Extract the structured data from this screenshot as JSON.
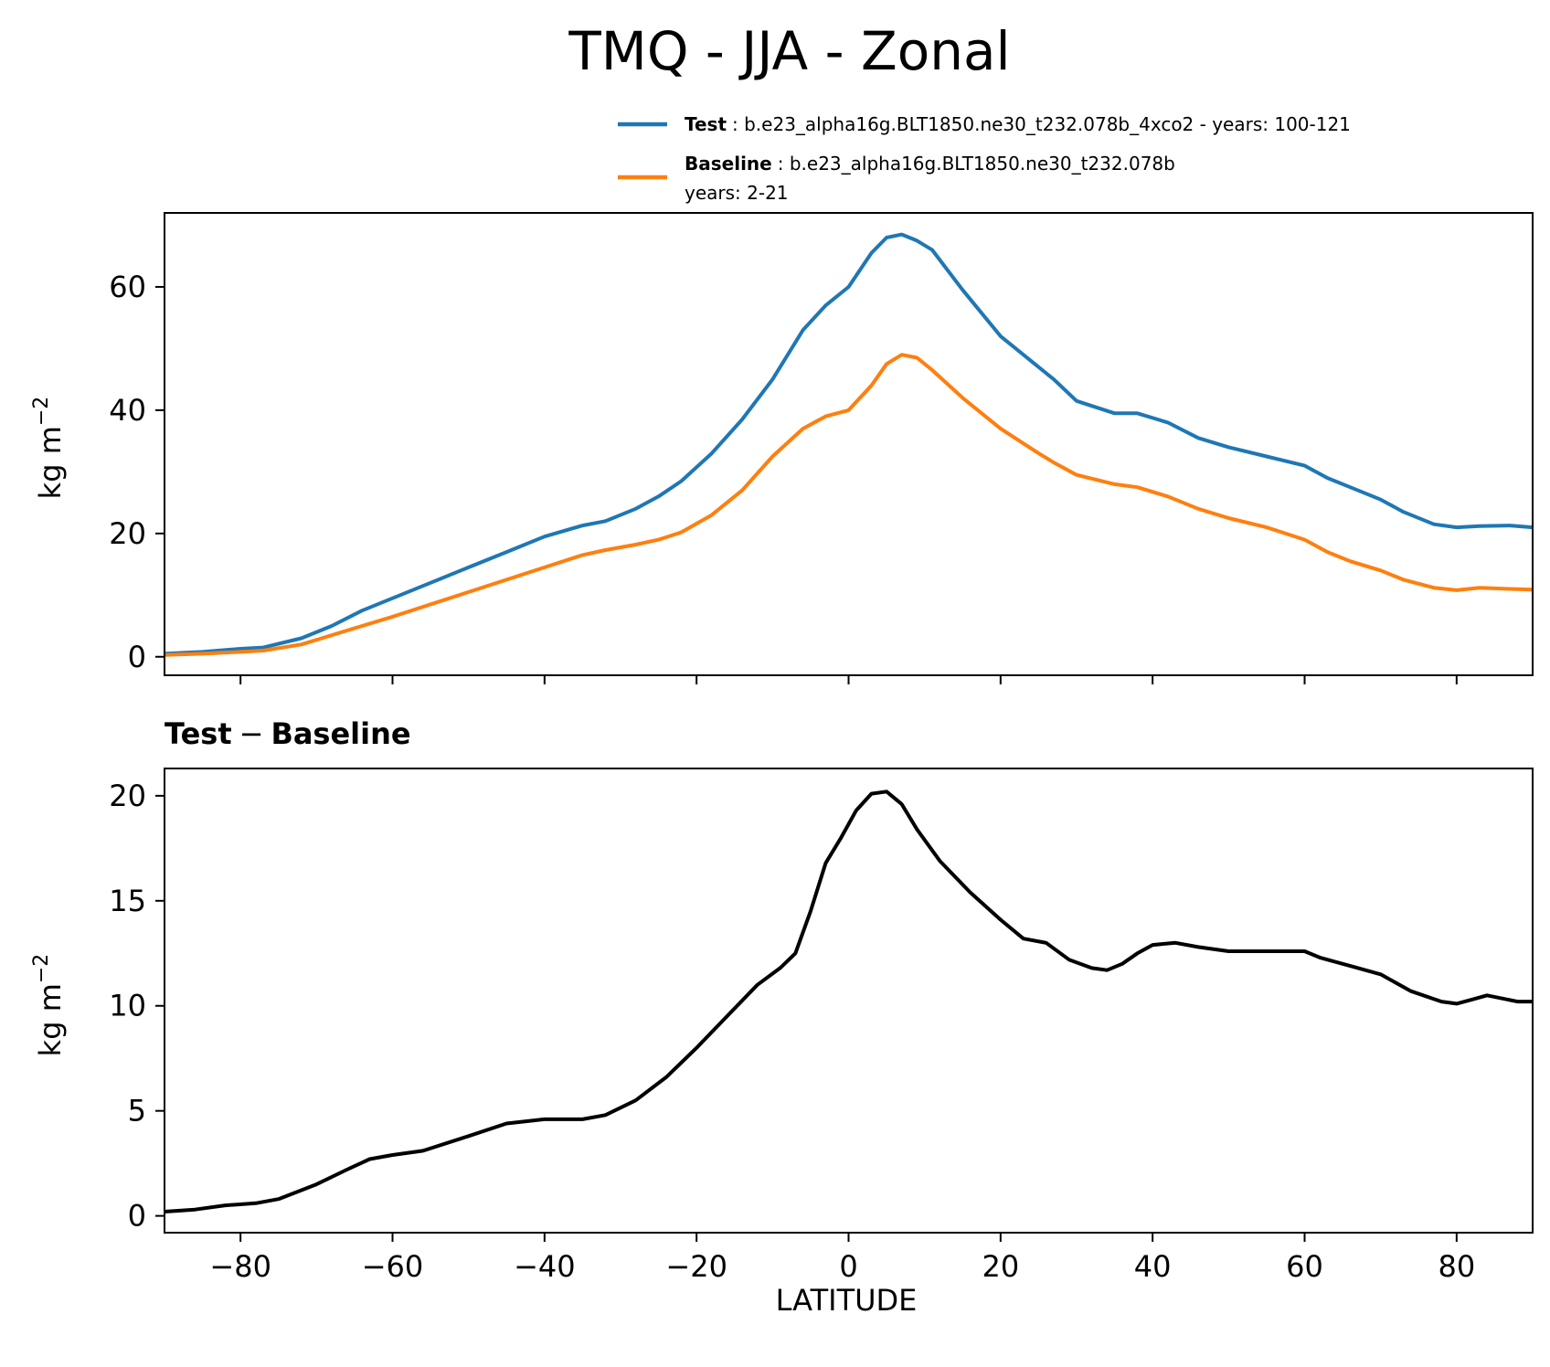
{
  "figure": {
    "title": "TMQ - JJA - Zonal",
    "legend": {
      "test": {
        "label": "Test",
        "text": ": b.e23_alpha16g.BLT1850.ne30_t232.078b_4xco2 - years: 100-121",
        "color": "#1f77b4"
      },
      "baseline": {
        "label": "Baseline",
        "text": ": b.e23_alpha16g.BLT1850.ne30_t232.078b",
        "text2": "years: 2-21",
        "color": "#ff7f0e"
      }
    },
    "diff_title_bold_left": "Test",
    "diff_title_sep": "−",
    "diff_title_bold_right": "Baseline",
    "ylabel_top": "kg m",
    "ylabel_bottom": "kg m",
    "ylabel_sup": "−2",
    "xlabel": "LATITUDE"
  },
  "chart_data": [
    {
      "type": "line",
      "xlim": [
        -90,
        90
      ],
      "ylim": [
        -3,
        72
      ],
      "xticks": [
        -80,
        -60,
        -40,
        -20,
        0,
        20,
        40,
        60,
        80
      ],
      "yticks": [
        0,
        20,
        40,
        60
      ],
      "xlabel": "",
      "ylabel": "kg m⁻²",
      "series": [
        {
          "name": "Test",
          "color": "#1f77b4",
          "x": [
            -90,
            -85,
            -80,
            -77,
            -72,
            -68,
            -64,
            -60,
            -55,
            -50,
            -45,
            -40,
            -35,
            -32,
            -28,
            -25,
            -22,
            -18,
            -14,
            -10,
            -6,
            -3,
            0,
            3,
            5,
            7,
            9,
            11,
            15,
            20,
            25,
            27,
            30,
            35,
            38,
            42,
            46,
            50,
            55,
            60,
            63,
            66,
            70,
            73,
            77,
            80,
            83,
            87,
            90
          ],
          "y": [
            0.5,
            0.8,
            1.3,
            1.5,
            3,
            5,
            7.5,
            9.5,
            12,
            14.5,
            17,
            19.5,
            21.3,
            22,
            24,
            26,
            28.5,
            33,
            38.5,
            45,
            53,
            57,
            60,
            65.5,
            68,
            68.5,
            67.5,
            66,
            59.5,
            52,
            47,
            45,
            41.5,
            39.5,
            39.5,
            38,
            35.5,
            34,
            32.5,
            31,
            29,
            27.5,
            25.5,
            23.5,
            21.5,
            21,
            21.2,
            21.3,
            21
          ]
        },
        {
          "name": "Baseline",
          "color": "#ff7f0e",
          "x": [
            -90,
            -85,
            -80,
            -77,
            -72,
            -68,
            -64,
            -60,
            -55,
            -50,
            -45,
            -40,
            -35,
            -32,
            -28,
            -25,
            -22,
            -18,
            -14,
            -10,
            -6,
            -3,
            0,
            3,
            5,
            7,
            9,
            11,
            15,
            20,
            25,
            27,
            30,
            35,
            38,
            42,
            46,
            50,
            55,
            60,
            63,
            66,
            70,
            73,
            77,
            80,
            83,
            87,
            90
          ],
          "y": [
            0.3,
            0.5,
            0.8,
            1,
            2,
            3.5,
            5,
            6.5,
            8.5,
            10.5,
            12.5,
            14.5,
            16.5,
            17.3,
            18.2,
            19,
            20.2,
            23,
            27,
            32.5,
            37,
            39,
            40,
            44,
            47.5,
            49,
            48.5,
            46.5,
            42,
            37,
            33,
            31.5,
            29.5,
            28,
            27.5,
            26,
            24,
            22.5,
            21,
            19,
            17,
            15.5,
            14,
            12.5,
            11.2,
            10.8,
            11.2,
            11,
            10.9
          ]
        }
      ]
    },
    {
      "type": "line",
      "title": "Test − Baseline",
      "xlim": [
        -90,
        90
      ],
      "ylim": [
        -0.8,
        21.3
      ],
      "xticks": [
        -80,
        -60,
        -40,
        -20,
        0,
        20,
        40,
        60,
        80
      ],
      "yticks": [
        0,
        5,
        10,
        15,
        20
      ],
      "xlabel": "LATITUDE",
      "ylabel": "kg m⁻²",
      "series": [
        {
          "name": "Test − Baseline",
          "color": "#000000",
          "x": [
            -90,
            -86,
            -82,
            -78,
            -75,
            -70,
            -66,
            -63,
            -60,
            -56,
            -50,
            -45,
            -40,
            -35,
            -32,
            -28,
            -24,
            -20,
            -16,
            -12,
            -9,
            -7,
            -5,
            -3,
            -1,
            1,
            3,
            5,
            7,
            9,
            12,
            16,
            20,
            23,
            26,
            29,
            32,
            34,
            36,
            38,
            40,
            43,
            46,
            50,
            55,
            58,
            60,
            62,
            66,
            70,
            74,
            78,
            80,
            82,
            84,
            88,
            90
          ],
          "y": [
            0.2,
            0.3,
            0.5,
            0.6,
            0.8,
            1.5,
            2.2,
            2.7,
            2.9,
            3.1,
            3.8,
            4.4,
            4.6,
            4.6,
            4.8,
            5.5,
            6.6,
            8,
            9.5,
            11,
            11.8,
            12.5,
            14.5,
            16.8,
            18,
            19.3,
            20.1,
            20.2,
            19.6,
            18.4,
            16.9,
            15.4,
            14.1,
            13.2,
            13,
            12.2,
            11.8,
            11.7,
            12,
            12.5,
            12.9,
            13,
            12.8,
            12.6,
            12.6,
            12.6,
            12.6,
            12.3,
            11.9,
            11.5,
            10.7,
            10.2,
            10.1,
            10.3,
            10.5,
            10.2,
            10.2
          ]
        }
      ]
    }
  ]
}
